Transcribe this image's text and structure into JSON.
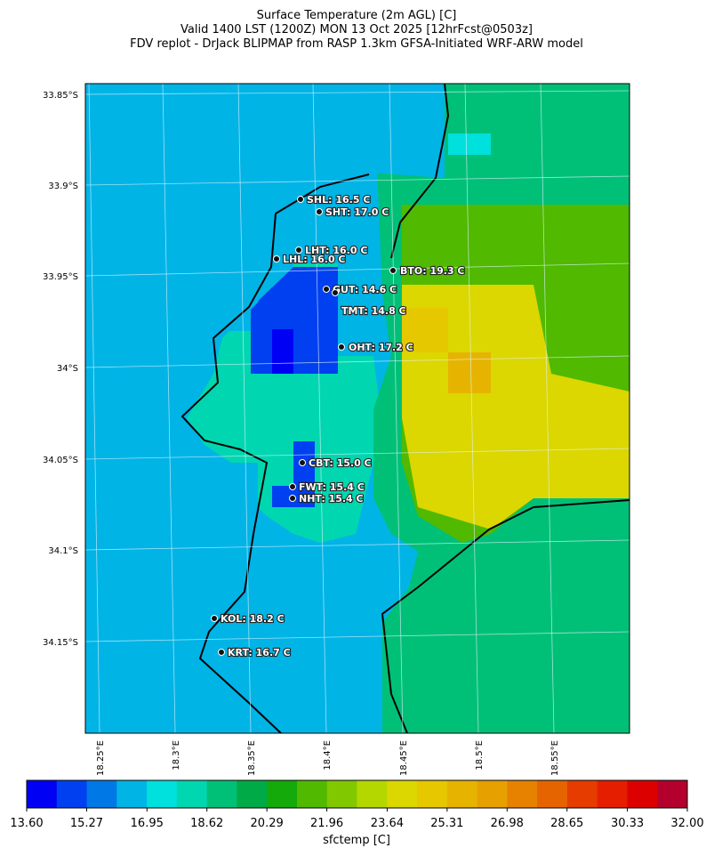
{
  "title": [
    "Surface Temperature (2m AGL) [C]",
    "Valid 1400 LST (1200Z) MON 13 Oct 2025 [12hrFcst@0503z]",
    "FDV replot - DrJack BLIPMAP from RASP 1.3km GFSA-Initiated WRF-ARW model"
  ],
  "map": {
    "lat_labels": [
      "33.85°S",
      "33.9°S",
      "33.95°S",
      "34°S",
      "34.05°S",
      "34.1°S",
      "34.15°S"
    ],
    "lon_labels": [
      "18.25°E",
      "18.3°E",
      "18.35°E",
      "18.4°E",
      "18.45°E",
      "18.5°E",
      "18.55°E"
    ],
    "stations": [
      "SHL: 16.5 C",
      "SHT: 17.0 C",
      "LHT: 16.0 C",
      "LHL: 16.0 C",
      "BTO: 19.3 C",
      "GUT: 14.6 C",
      "TMT: 14.8 C",
      "OHT: 17.2 C",
      "CBT: 15.0 C",
      "FWT: 15.4 C",
      "NHT: 15.4 C",
      "KOL: 18.2 C",
      "KRT: 16.7 C"
    ]
  },
  "colorbar": {
    "label": "sfctemp [C]",
    "lim": [
      13.6,
      32.0
    ],
    "ticks": [
      {
        "value": 13.6,
        "label": "13.60"
      },
      {
        "value": 15.27,
        "label": "15.27"
      },
      {
        "value": 16.95,
        "label": "16.95"
      },
      {
        "value": 18.62,
        "label": "18.62"
      },
      {
        "value": 20.29,
        "label": "20.29"
      },
      {
        "value": 21.96,
        "label": "21.96"
      },
      {
        "value": 23.64,
        "label": "23.64"
      },
      {
        "value": 25.31,
        "label": "25.31"
      },
      {
        "value": 26.98,
        "label": "26.98"
      },
      {
        "value": 28.65,
        "label": "28.65"
      },
      {
        "value": 30.33,
        "label": "30.33"
      },
      {
        "value": 32.0,
        "label": "32.00"
      }
    ],
    "colors": [
      "#0000f5",
      "#0040f0",
      "#0078e6",
      "#00b4e6",
      "#00e0dc",
      "#00d7b0",
      "#00c078",
      "#00aa46",
      "#14aa0a",
      "#50b900",
      "#82c800",
      "#b4d700",
      "#dcd700",
      "#e6c800",
      "#e6b400",
      "#e6a000",
      "#e68200",
      "#e66400",
      "#e63c00",
      "#e61e00",
      "#dc0000",
      "#b4002d"
    ]
  }
}
